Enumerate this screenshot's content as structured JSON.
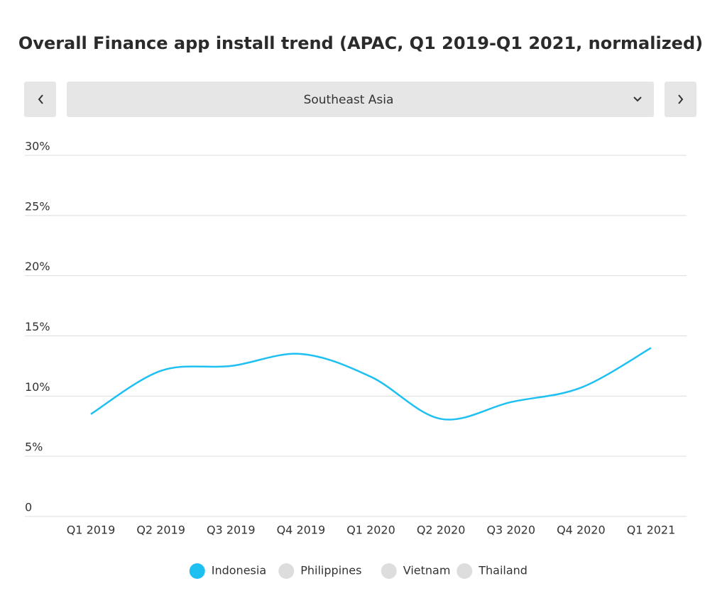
{
  "chart_data": {
    "type": "line",
    "title": "Overall Finance app install trend (APAC, Q1 2019-Q1 2021, normalized)",
    "region": "Southeast Asia",
    "categories": [
      "Q1 2019",
      "Q2 2019",
      "Q3 2019",
      "Q4 2019",
      "Q1 2020",
      "Q2 2020",
      "Q3 2020",
      "Q4 2020",
      "Q1 2021"
    ],
    "series": [
      {
        "name": "Indonesia",
        "color": "#1ec0f2",
        "visible": true,
        "values": [
          8.5,
          12.1,
          12.5,
          13.5,
          11.6,
          8.1,
          9.5,
          10.7,
          14.0
        ]
      },
      {
        "name": "Philippines",
        "color": "#dddddd",
        "visible": false
      },
      {
        "name": "Vietnam",
        "color": "#dddddd",
        "visible": false
      },
      {
        "name": "Thailand",
        "color": "#dddddd",
        "visible": false
      }
    ],
    "ylim": [
      0,
      30
    ],
    "yticks": [
      0,
      {
        "value": 5,
        "label": "5%"
      },
      {
        "value": 10,
        "label": "10%"
      },
      {
        "value": 15,
        "label": "15%"
      },
      {
        "value": 20,
        "label": "20%"
      },
      {
        "value": 25,
        "label": "25%"
      },
      {
        "value": 30,
        "label": "30%"
      }
    ],
    "grid": true,
    "smooth": true,
    "legend": "bottom"
  }
}
